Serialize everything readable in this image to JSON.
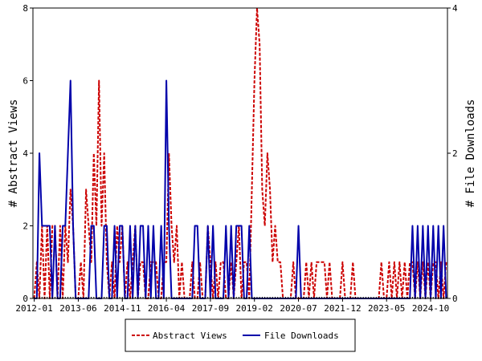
{
  "chart_data": {
    "type": "line",
    "x_dates": [
      "2012-01",
      "2012-02",
      "2012-03",
      "2012-04",
      "2012-05",
      "2012-06",
      "2012-07",
      "2012-08",
      "2012-09",
      "2012-10",
      "2012-11",
      "2012-12",
      "2013-01",
      "2013-02",
      "2013-03",
      "2013-04",
      "2013-05",
      "2013-06",
      "2013-07",
      "2013-08",
      "2013-09",
      "2013-10",
      "2013-11",
      "2013-12",
      "2014-01",
      "2014-02",
      "2014-03",
      "2014-04",
      "2014-05",
      "2014-06",
      "2014-07",
      "2014-08",
      "2014-09",
      "2014-10",
      "2014-11",
      "2014-12",
      "2015-01",
      "2015-02",
      "2015-03",
      "2015-04",
      "2015-05",
      "2015-06",
      "2015-07",
      "2015-08",
      "2015-09",
      "2015-10",
      "2015-11",
      "2015-12",
      "2016-01",
      "2016-02",
      "2016-03",
      "2016-04",
      "2016-05",
      "2016-06",
      "2016-07",
      "2016-08",
      "2016-09",
      "2016-10",
      "2016-11",
      "2016-12",
      "2017-01",
      "2017-02",
      "2017-03",
      "2017-04",
      "2017-05",
      "2017-06",
      "2017-07",
      "2017-08",
      "2017-09",
      "2017-10",
      "2017-11",
      "2017-12",
      "2018-01",
      "2018-02",
      "2018-03",
      "2018-04",
      "2018-05",
      "2018-06",
      "2018-07",
      "2018-08",
      "2018-09",
      "2018-10",
      "2018-11",
      "2018-12",
      "2019-01",
      "2019-02",
      "2019-03",
      "2019-04",
      "2019-05",
      "2019-06",
      "2019-07",
      "2019-08",
      "2019-09",
      "2019-10",
      "2019-11",
      "2019-12",
      "2020-01",
      "2020-02",
      "2020-03",
      "2020-04",
      "2020-05",
      "2020-06",
      "2020-07",
      "2020-08",
      "2020-09",
      "2020-10",
      "2020-11",
      "2020-12",
      "2021-01",
      "2021-02",
      "2021-03",
      "2021-04",
      "2021-05",
      "2021-06",
      "2021-07",
      "2021-08",
      "2021-09",
      "2021-10",
      "2021-11",
      "2021-12",
      "2022-01",
      "2022-02",
      "2022-03",
      "2022-04",
      "2022-05",
      "2022-06",
      "2022-07",
      "2022-08",
      "2022-09",
      "2022-10",
      "2022-11",
      "2022-12",
      "2023-01",
      "2023-02",
      "2023-03",
      "2023-04",
      "2023-05",
      "2023-06",
      "2023-07",
      "2023-08",
      "2023-09",
      "2023-10",
      "2023-11",
      "2023-12",
      "2024-01",
      "2024-02",
      "2024-03",
      "2024-04",
      "2024-05",
      "2024-06",
      "2024-07",
      "2024-08",
      "2024-09",
      "2024-10",
      "2024-11",
      "2024-12",
      "2025-01",
      "2025-02",
      "2025-03",
      "2025-04"
    ],
    "series": [
      {
        "name": "Abstract Views",
        "axis": "left",
        "color": "#cc0000",
        "dash": "dashed",
        "values": [
          0,
          1,
          0,
          2,
          0,
          2,
          0,
          2,
          2,
          0,
          2,
          0,
          2,
          1,
          3,
          2,
          0,
          0,
          1,
          0,
          3,
          2,
          1,
          4,
          2,
          6,
          2,
          4,
          1,
          0,
          1,
          0,
          2,
          1,
          2,
          0,
          1,
          0,
          1,
          2,
          0,
          1,
          1,
          0,
          0,
          1,
          1,
          1,
          0,
          0,
          1,
          1,
          4,
          2,
          1,
          2,
          0,
          1,
          0,
          0,
          0,
          1,
          0,
          0,
          1,
          0,
          0,
          2,
          1,
          0,
          1,
          0,
          1,
          1,
          0,
          0,
          1,
          0,
          1,
          2,
          0,
          1,
          1,
          0,
          3,
          6,
          8,
          7,
          3,
          2,
          4,
          3,
          1,
          2,
          1,
          1,
          0,
          0,
          0,
          0,
          1,
          0,
          0,
          0,
          0,
          1,
          0,
          1,
          0,
          1,
          1,
          1,
          1,
          0,
          1,
          0,
          0,
          0,
          0,
          1,
          0,
          0,
          0,
          1,
          0,
          0,
          0,
          0,
          0,
          0,
          0,
          0,
          0,
          0,
          1,
          0,
          0,
          1,
          0,
          1,
          0,
          1,
          0,
          1,
          0,
          1,
          1,
          0,
          1,
          0,
          1,
          0,
          1,
          0,
          1,
          1,
          0,
          1,
          0,
          1
        ]
      },
      {
        "name": "File Downloads",
        "axis": "right",
        "color": "#0000aa",
        "dash": "solid",
        "values": [
          0,
          0,
          2,
          1,
          1,
          1,
          1,
          0,
          1,
          0,
          0,
          1,
          1,
          2,
          3,
          1,
          0,
          0,
          0,
          0,
          0,
          0,
          1,
          1,
          0,
          0,
          0,
          1,
          1,
          0,
          0,
          1,
          0,
          1,
          1,
          0,
          0,
          1,
          0,
          1,
          0,
          1,
          1,
          0,
          1,
          0,
          1,
          0,
          0,
          1,
          0,
          3,
          1,
          0,
          0,
          0,
          0,
          0,
          0,
          0,
          0,
          0,
          1,
          1,
          0,
          0,
          0,
          1,
          0,
          1,
          0,
          0,
          0,
          0,
          1,
          0,
          1,
          0,
          1,
          1,
          1,
          0,
          0,
          1,
          0,
          0,
          0,
          0,
          0,
          0,
          0,
          0,
          0,
          0,
          0,
          0,
          0,
          0,
          0,
          0,
          0,
          0,
          1,
          0,
          0,
          0,
          0,
          0,
          0,
          0,
          0,
          0,
          0,
          0,
          0,
          0,
          0,
          0,
          0,
          0,
          0,
          0,
          0,
          0,
          0,
          0,
          0,
          0,
          0,
          0,
          0,
          0,
          0,
          0,
          0,
          0,
          0,
          0,
          0,
          0,
          0,
          0,
          0,
          0,
          0,
          0,
          1,
          0,
          1,
          0,
          1,
          0,
          1,
          0,
          1,
          0,
          1,
          0,
          1,
          0
        ]
      }
    ],
    "xlabel": "",
    "ylabel_left": "# Abstract Views",
    "ylabel_right": "# File Downloads",
    "ylim_left": [
      0,
      8
    ],
    "ylim_right": [
      0,
      4
    ],
    "yticks_left": [
      "0",
      "2",
      "4",
      "6",
      "8"
    ],
    "yticks_right": [
      "0",
      "2",
      "4"
    ],
    "xticks": [
      "2012-01",
      "2013-06",
      "2014-11",
      "2016-04",
      "2017-09",
      "2019-02",
      "2020-07",
      "2021-12",
      "2023-05",
      "2024-10"
    ],
    "legend_placement": "bottom-center",
    "grid": false
  }
}
